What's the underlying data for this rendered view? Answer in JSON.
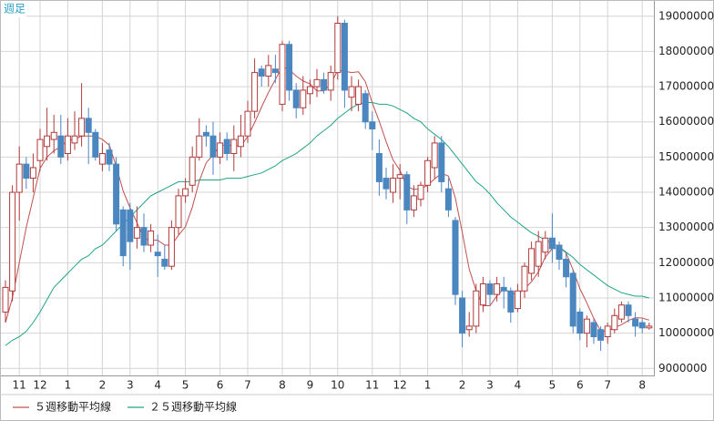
{
  "chart_data": {
    "type": "candlestick",
    "badge": "週足",
    "categories": [
      null,
      null,
      "11",
      null,
      null,
      "12",
      null,
      null,
      null,
      "1",
      null,
      null,
      null,
      null,
      "2",
      null,
      null,
      null,
      "3",
      null,
      null,
      null,
      "4",
      null,
      null,
      null,
      "5",
      null,
      null,
      null,
      null,
      "6",
      null,
      null,
      null,
      "7",
      null,
      null,
      null,
      null,
      "8",
      null,
      null,
      null,
      "9",
      null,
      null,
      null,
      "10",
      null,
      null,
      null,
      null,
      "11",
      null,
      null,
      null,
      "12",
      null,
      null,
      null,
      "1",
      null,
      null,
      null,
      null,
      "2",
      null,
      null,
      null,
      "3",
      null,
      null,
      null,
      "4",
      null,
      null,
      null,
      null,
      "5",
      null,
      null,
      null,
      "6",
      null,
      null,
      null,
      "7",
      null,
      null,
      null,
      null,
      "8",
      null
    ],
    "open": [
      10600000,
      11200000,
      14000000,
      14800000,
      14400000,
      14900000,
      15300000,
      15500000,
      15600000,
      15100000,
      15400000,
      15600000,
      16100000,
      15700000,
      14800000,
      15200000,
      14800000,
      13500000,
      13500000,
      12700000,
      13000000,
      12500000,
      12300000,
      12100000,
      11900000,
      13000000,
      13900000,
      14200000,
      15000000,
      15700000,
      15600000,
      15000000,
      15500000,
      15100000,
      15300000,
      15600000,
      16300000,
      17500000,
      17300000,
      17500000,
      16500000,
      18200000,
      16900000,
      16400000,
      16800000,
      17000000,
      17200000,
      16900000,
      17400000,
      18800000,
      16700000,
      16500000,
      16800000,
      16000000,
      15100000,
      14400000,
      14000000,
      14400000,
      14500000,
      13500000,
      13800000,
      14200000,
      14700000,
      15400000,
      14100000,
      13200000,
      11000000,
      10100000,
      10200000,
      10800000,
      11400000,
      11100000,
      11300000,
      11200000,
      10700000,
      11200000,
      11700000,
      11900000,
      12300000,
      12700000,
      12500000,
      12100000,
      11700000,
      10600000,
      10000000,
      10300000,
      10100000,
      9900000,
      10100000,
      10400000,
      10800000,
      10400000,
      10300000,
      10150000
    ],
    "high": [
      11500000,
      14200000,
      15300000,
      15000000,
      15100000,
      15800000,
      16400000,
      16200000,
      16200000,
      16100000,
      16300000,
      17100000,
      16400000,
      15800000,
      15400000,
      15400000,
      15000000,
      13600000,
      13700000,
      13600000,
      13400000,
      13100000,
      12800000,
      12500000,
      13200000,
      14100000,
      14400000,
      15300000,
      16100000,
      15900000,
      16000000,
      15700000,
      15700000,
      15900000,
      16200000,
      16600000,
      17800000,
      17600000,
      17900000,
      17900000,
      18300000,
      18300000,
      17100000,
      17300000,
      17200000,
      17500000,
      17400000,
      17600000,
      19000000,
      18900000,
      17300000,
      17200000,
      16900000,
      16300000,
      15500000,
      14700000,
      14800000,
      14800000,
      14600000,
      14200000,
      14300000,
      15000000,
      15600000,
      15600000,
      14400000,
      13300000,
      11200000,
      10600000,
      11400000,
      11600000,
      11500000,
      11600000,
      11600000,
      11300000,
      11400000,
      12000000,
      12600000,
      12900000,
      12900000,
      13400000,
      12600000,
      12300000,
      11800000,
      10700000,
      10500000,
      10400000,
      10200000,
      10300000,
      10700000,
      10900000,
      10900000,
      10600000,
      10400000,
      10300000
    ],
    "low": [
      10300000,
      10900000,
      13200000,
      14100000,
      14000000,
      14600000,
      14900000,
      15100000,
      14800000,
      14900000,
      15200000,
      15300000,
      14800000,
      14900000,
      14600000,
      14600000,
      12900000,
      11900000,
      11800000,
      12400000,
      12300000,
      12300000,
      11600000,
      11800000,
      11800000,
      12800000,
      13700000,
      14000000,
      14900000,
      15300000,
      14500000,
      14800000,
      14900000,
      14600000,
      15000000,
      15400000,
      16100000,
      17000000,
      17000000,
      17100000,
      16300000,
      16600000,
      16100000,
      16200000,
      16500000,
      16700000,
      16800000,
      16600000,
      17200000,
      16400000,
      16300000,
      16300000,
      15800000,
      15200000,
      13900000,
      13800000,
      13700000,
      13800000,
      13100000,
      13300000,
      13600000,
      14000000,
      14400000,
      14000000,
      13300000,
      10800000,
      9600000,
      9900000,
      10000000,
      10600000,
      10800000,
      10900000,
      10700000,
      10300000,
      10600000,
      11000000,
      11500000,
      11600000,
      12100000,
      12000000,
      11800000,
      11300000,
      10000000,
      9800000,
      9600000,
      9700000,
      9500000,
      9700000,
      10000000,
      10300000,
      10300000,
      9900000,
      10000000,
      10100000
    ],
    "close": [
      11300000,
      14000000,
      14800000,
      14400000,
      14700000,
      15500000,
      15600000,
      15700000,
      15000000,
      15600000,
      15600000,
      16100000,
      15700000,
      15000000,
      15100000,
      14800000,
      13100000,
      12200000,
      12600000,
      13000000,
      12500000,
      12900000,
      12200000,
      11900000,
      13000000,
      13900000,
      14100000,
      15000000,
      15600000,
      15600000,
      15000000,
      15400000,
      15100000,
      15500000,
      15600000,
      16300000,
      17400000,
      17300000,
      17600000,
      17400000,
      18200000,
      16900000,
      16400000,
      16900000,
      17000000,
      17200000,
      16900000,
      17400000,
      18800000,
      16900000,
      17000000,
      17000000,
      16000000,
      15800000,
      14300000,
      14100000,
      14400000,
      14500000,
      13500000,
      13900000,
      14200000,
      14900000,
      15400000,
      14300000,
      13500000,
      11100000,
      10000000,
      10200000,
      11200000,
      11400000,
      11100000,
      11400000,
      11200000,
      10600000,
      11200000,
      11900000,
      12400000,
      12600000,
      12700000,
      12400000,
      12100000,
      11600000,
      10200000,
      10000000,
      10400000,
      9900000,
      9800000,
      10200000,
      10500000,
      10800000,
      10500000,
      10200000,
      10150000,
      10200000
    ],
    "up_color": "#b03a3a",
    "down_color": "#4a86c0",
    "lines": [
      {
        "name": "５週移動平均線",
        "color": "#c0504d",
        "values": [
          10300000,
          11000000,
          12000000,
          13000000,
          13840000,
          14680000,
          15000000,
          15180000,
          15300000,
          15480000,
          15500000,
          15600000,
          15600000,
          15600000,
          15500000,
          15340000,
          14740000,
          14040000,
          13560000,
          13140000,
          12680000,
          12640000,
          12640000,
          12500000,
          12500000,
          12780000,
          13020000,
          13580000,
          14320000,
          14840000,
          15060000,
          15320000,
          15340000,
          15320000,
          15320000,
          15580000,
          15980000,
          16420000,
          16840000,
          17200000,
          17580000,
          17480000,
          17300000,
          17160000,
          17080000,
          16880000,
          16880000,
          17080000,
          17460000,
          17440000,
          17400000,
          17420000,
          17140000,
          16540000,
          16020000,
          15440000,
          14920000,
          14620000,
          14160000,
          14080000,
          14100000,
          14200000,
          14380000,
          14540000,
          14460000,
          13840000,
          12860000,
          11820000,
          11200000,
          10780000,
          10780000,
          11060000,
          11260000,
          11140000,
          11100000,
          11260000,
          11460000,
          11740000,
          12160000,
          12400000,
          12440000,
          12280000,
          11800000,
          11260000,
          10860000,
          10420000,
          10060000,
          10060000,
          10160000,
          10240000,
          10360000,
          10440000,
          10430000,
          10370000
        ]
      },
      {
        "name": "２５週移動平均線",
        "color": "#1fa386",
        "values": [
          9650000,
          9800000,
          9900000,
          10050000,
          10300000,
          10600000,
          10950000,
          11300000,
          11500000,
          11700000,
          11900000,
          12100000,
          12200000,
          12400000,
          12500000,
          12700000,
          12900000,
          13100000,
          13300000,
          13500000,
          13700000,
          13900000,
          14000000,
          14100000,
          14200000,
          14300000,
          14300000,
          14300000,
          14350000,
          14350000,
          14350000,
          14350000,
          14400000,
          14400000,
          14400000,
          14450000,
          14500000,
          14550000,
          14650000,
          14750000,
          14900000,
          15000000,
          15100000,
          15250000,
          15400000,
          15600000,
          15750000,
          15900000,
          16100000,
          16250000,
          16400000,
          16500000,
          16550000,
          16550000,
          16500000,
          16500000,
          16450000,
          16350000,
          16250000,
          16100000,
          16000000,
          15800000,
          15650000,
          15500000,
          15300000,
          15050000,
          14800000,
          14550000,
          14300000,
          14150000,
          13950000,
          13700000,
          13500000,
          13300000,
          13150000,
          13000000,
          12850000,
          12750000,
          12650000,
          12550000,
          12450000,
          12300000,
          12150000,
          11950000,
          11800000,
          11650000,
          11500000,
          11350000,
          11250000,
          11150000,
          11100000,
          11050000,
          11050000,
          11000000
        ]
      }
    ],
    "ylim": [
      8800000,
      19460000
    ],
    "yticks": [
      9000000,
      10000000,
      11000000,
      12000000,
      13000000,
      14000000,
      15000000,
      16000000,
      17000000,
      18000000,
      19000000
    ],
    "grid": true
  }
}
